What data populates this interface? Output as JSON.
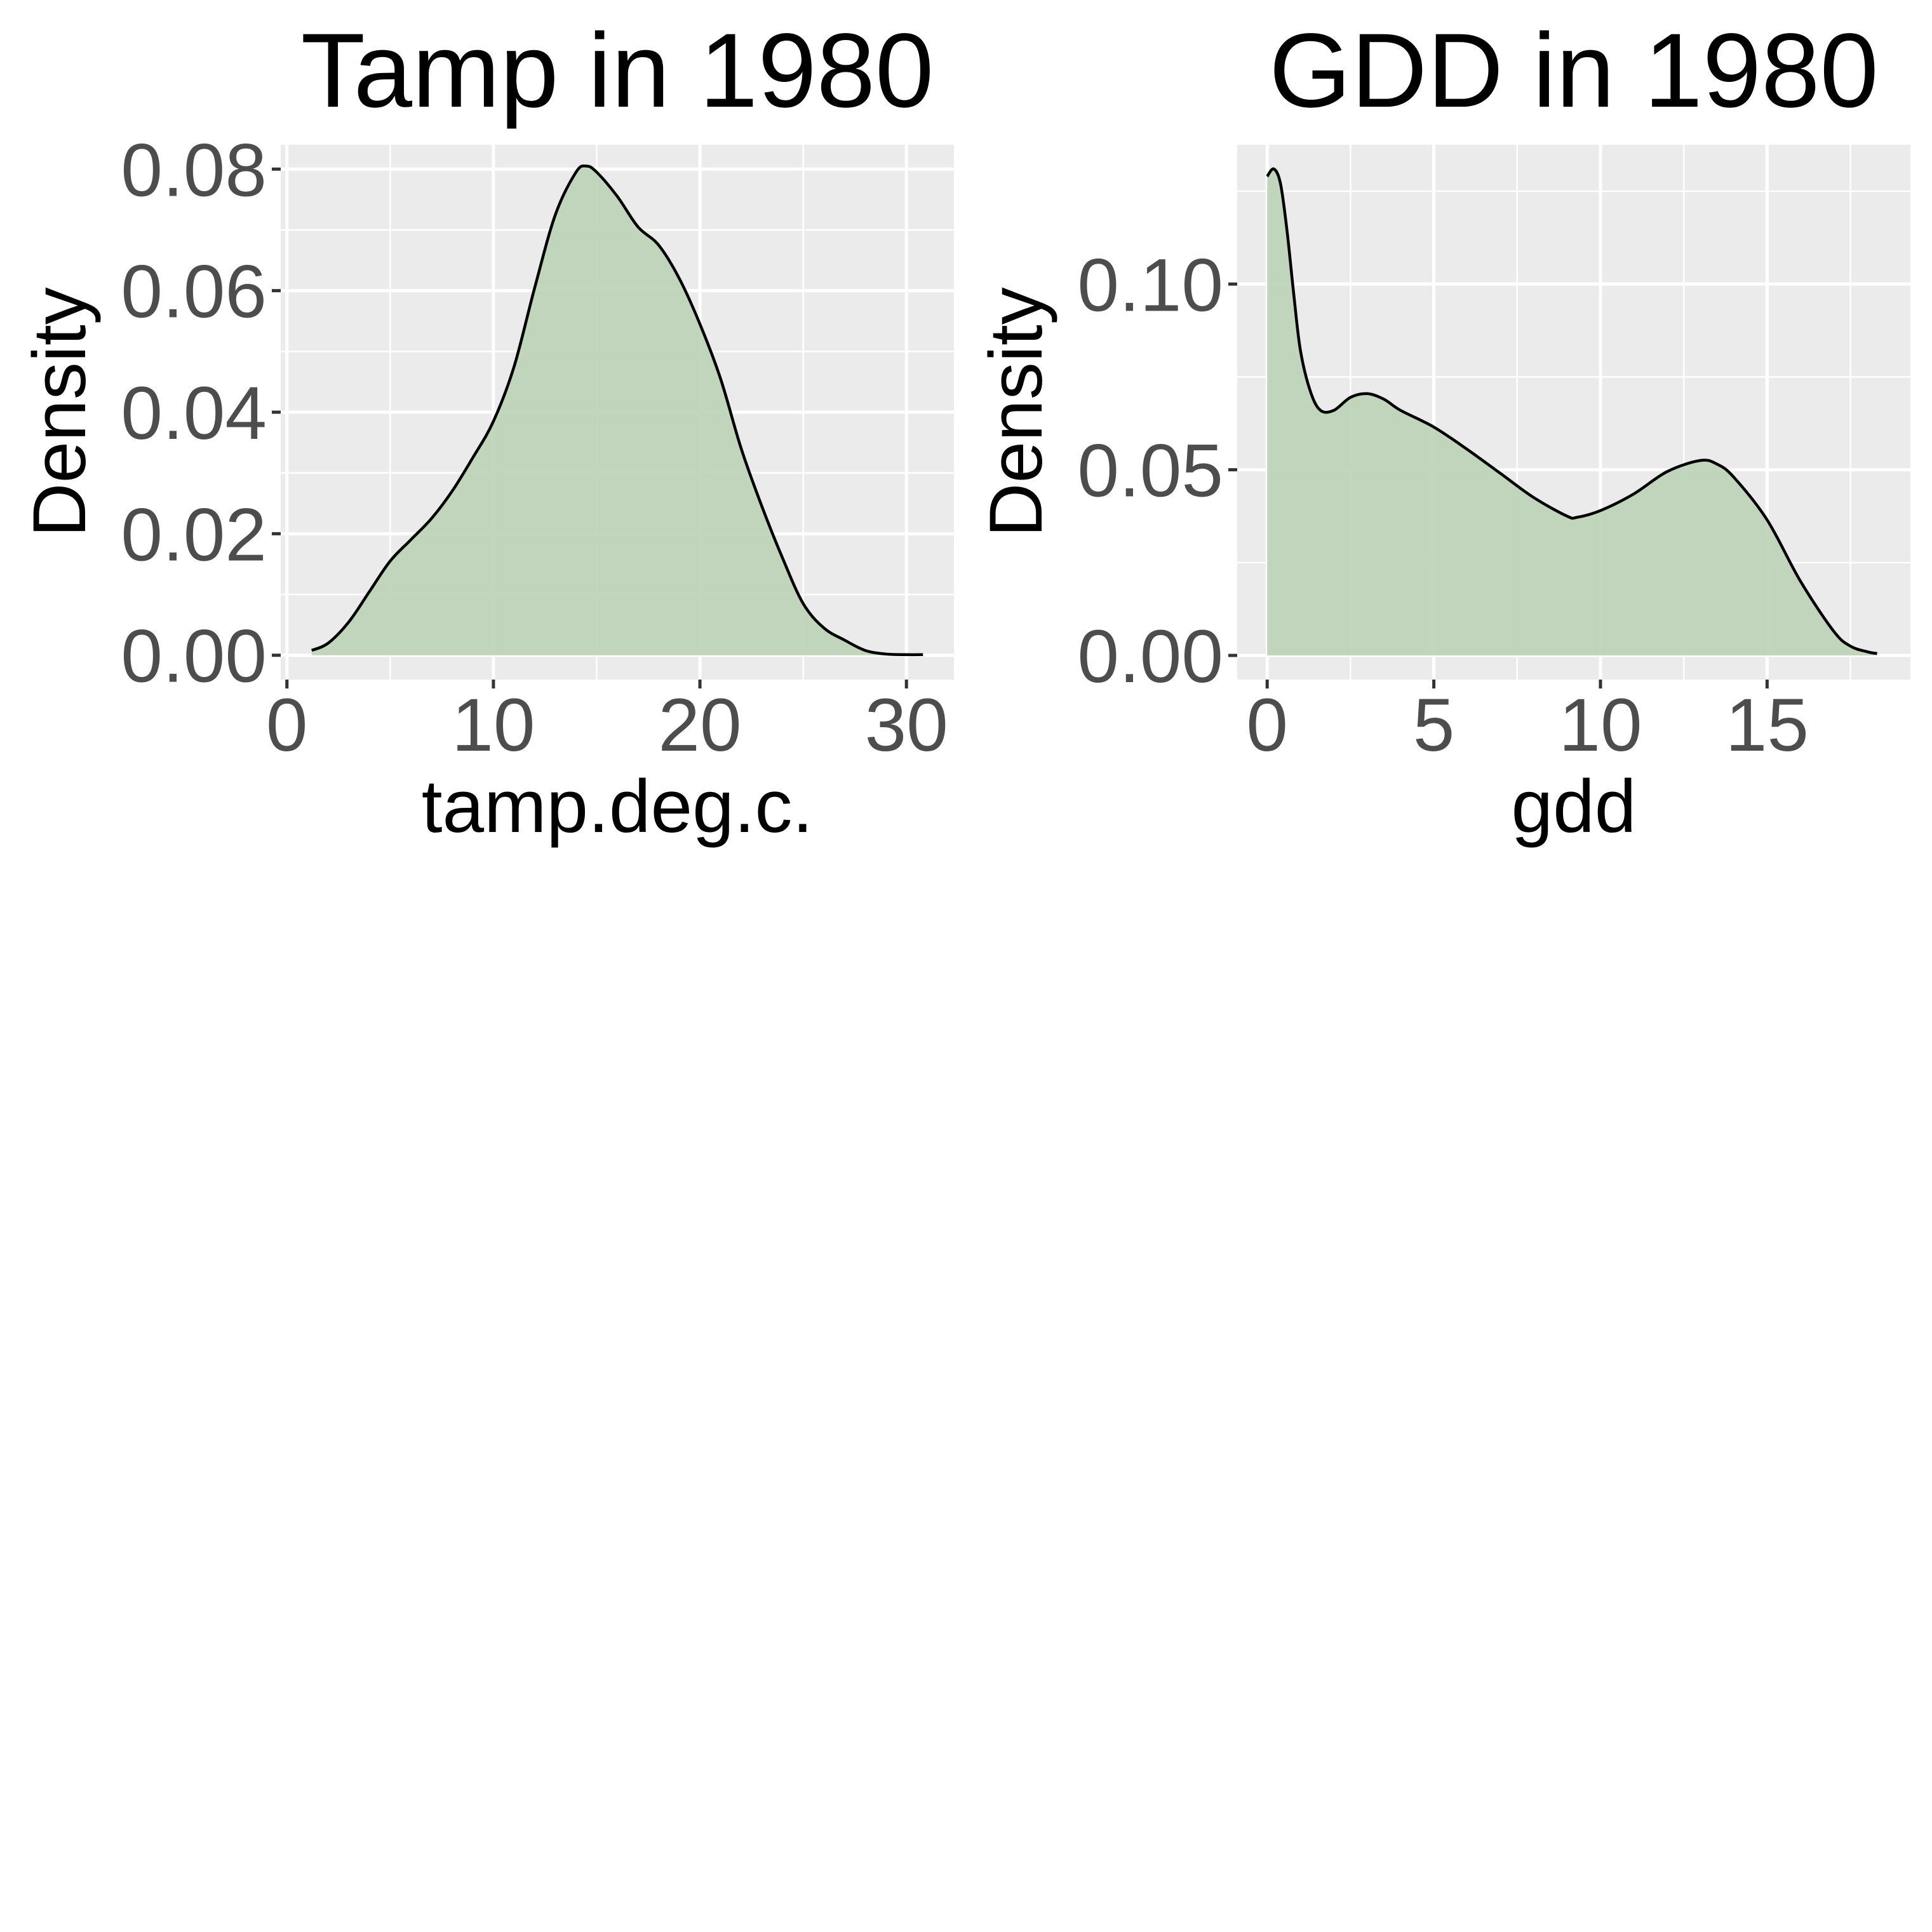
{
  "chart_data": [
    {
      "type": "area",
      "title": "Tamp in 1980",
      "xlabel": "tamp.deg.c.",
      "ylabel": "Density",
      "xlim": [
        -0.3,
        32.3
      ],
      "ylim": [
        -0.004,
        0.084
      ],
      "x_ticks": [
        0,
        10,
        20,
        30
      ],
      "x_tick_labels": [
        "0",
        "10",
        "20",
        "30"
      ],
      "y_ticks": [
        0,
        0.02,
        0.04,
        0.06,
        0.08
      ],
      "y_tick_labels": [
        "0.00",
        "0.02",
        "0.04",
        "0.06",
        "0.08"
      ],
      "grid": true,
      "fill_color": "#bdd2b8",
      "line_color": "#000000",
      "background_color": "#ebebeb",
      "x": [
        1.2,
        2,
        3,
        4,
        5,
        6,
        7,
        8,
        9,
        10,
        11,
        12,
        13,
        14,
        14.5,
        15,
        16,
        17,
        18,
        19,
        20,
        21,
        22,
        23,
        24,
        25,
        26,
        27,
        28,
        29,
        30,
        30.8
      ],
      "y": [
        0.0008,
        0.002,
        0.0055,
        0.0105,
        0.0155,
        0.019,
        0.0225,
        0.027,
        0.0325,
        0.0385,
        0.0475,
        0.0605,
        0.0725,
        0.0795,
        0.0805,
        0.0795,
        0.0755,
        0.0705,
        0.0675,
        0.062,
        0.0545,
        0.0455,
        0.034,
        0.0245,
        0.016,
        0.0085,
        0.0045,
        0.0025,
        0.0008,
        0.0002,
        0.0001,
        0.0001
      ]
    },
    {
      "type": "area",
      "title": "GDD in 1980",
      "xlabel": "gdd",
      "ylabel": "Density",
      "xlim": [
        -0.9,
        19.3
      ],
      "ylim": [
        -0.0065,
        0.1375
      ],
      "x_ticks": [
        0,
        5,
        10,
        15
      ],
      "x_tick_labels": [
        "0",
        "5",
        "10",
        "15"
      ],
      "y_ticks": [
        0,
        0.05,
        0.1
      ],
      "y_tick_labels": [
        "0.00",
        "0.05",
        "0.10"
      ],
      "grid": true,
      "fill_color": "#bdd2b8",
      "line_color": "#000000",
      "background_color": "#ebebeb",
      "x": [
        0,
        0.2,
        0.4,
        0.6,
        0.8,
        1.0,
        1.3,
        1.6,
        2.0,
        2.5,
        3.0,
        3.5,
        4,
        5,
        6,
        7,
        8,
        9,
        9.3,
        10,
        11,
        12,
        13,
        13.5,
        14,
        15,
        16,
        17,
        17.5,
        18,
        18.3
      ],
      "y": [
        0.129,
        0.131,
        0.127,
        0.114,
        0.097,
        0.082,
        0.071,
        0.066,
        0.066,
        0.0695,
        0.0705,
        0.069,
        0.066,
        0.0615,
        0.0555,
        0.049,
        0.0425,
        0.0375,
        0.0372,
        0.039,
        0.0435,
        0.0495,
        0.0525,
        0.0515,
        0.048,
        0.0365,
        0.02,
        0.0065,
        0.0025,
        0.001,
        0.0005
      ]
    }
  ]
}
